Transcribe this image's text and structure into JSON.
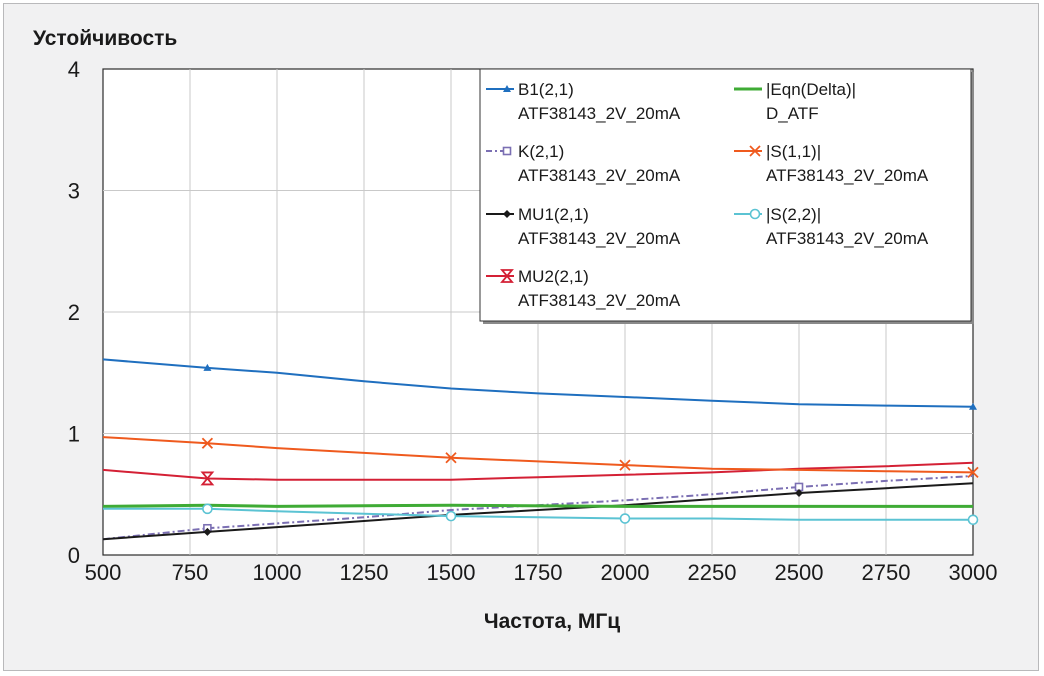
{
  "chart_data": {
    "type": "line",
    "title": "Устойчивость",
    "xlabel": "Частота, МГц",
    "ylabel": "",
    "xlim": [
      500,
      3000
    ],
    "ylim": [
      0,
      4
    ],
    "xticks": [
      "500",
      "750",
      "1000",
      "1250",
      "1500",
      "1750",
      "2000",
      "2250",
      "2500",
      "2750",
      "3000"
    ],
    "yticks": [
      "0",
      "1",
      "2",
      "3",
      "4"
    ],
    "grid": true,
    "legend_position": "top-right",
    "series": [
      {
        "name": "B1(2,1)",
        "subname": "ATF38143_2V_20mA",
        "color": "#1f6fbf",
        "marker": "triangle",
        "dash": false,
        "x": [
          500,
          800,
          1000,
          1250,
          1500,
          1750,
          2000,
          2250,
          2500,
          2750,
          3000
        ],
        "y": [
          1.61,
          1.54,
          1.5,
          1.43,
          1.37,
          1.33,
          1.3,
          1.27,
          1.24,
          1.23,
          1.22
        ],
        "markers_x": [
          800,
          3000
        ]
      },
      {
        "name": "K(2,1)",
        "subname": "ATF38143_2V_20mA",
        "color": "#7b6fb3",
        "marker": "square",
        "dash": true,
        "x": [
          500,
          800,
          1000,
          1250,
          1500,
          1750,
          2000,
          2250,
          2500,
          2750,
          3000
        ],
        "y": [
          0.13,
          0.22,
          0.26,
          0.31,
          0.37,
          0.41,
          0.45,
          0.5,
          0.56,
          0.61,
          0.65
        ],
        "markers_x": [
          800,
          2500
        ]
      },
      {
        "name": "MU1(2,1)",
        "subname": "ATF38143_2V_20mA",
        "color": "#1a1a1a",
        "marker": "diamond",
        "dash": false,
        "x": [
          500,
          800,
          1000,
          1250,
          1500,
          1750,
          2000,
          2250,
          2500,
          2750,
          3000
        ],
        "y": [
          0.13,
          0.19,
          0.23,
          0.28,
          0.33,
          0.37,
          0.41,
          0.46,
          0.51,
          0.55,
          0.59
        ],
        "markers_x": [
          800,
          2500
        ]
      },
      {
        "name": "MU2(2,1)",
        "subname": "ATF38143_2V_20mA",
        "color": "#d42035",
        "marker": "hourglass",
        "dash": false,
        "x": [
          500,
          800,
          1000,
          1250,
          1500,
          1750,
          2000,
          2250,
          2500,
          2750,
          3000
        ],
        "y": [
          0.7,
          0.63,
          0.62,
          0.62,
          0.62,
          0.64,
          0.66,
          0.68,
          0.71,
          0.73,
          0.76
        ],
        "markers_x": [
          800
        ]
      },
      {
        "name": "|Eqn(Delta)|",
        "subname": "D_ATF",
        "color": "#3fab35",
        "marker": "none",
        "dash": false,
        "x": [
          500,
          800,
          1000,
          1500,
          2000,
          2500,
          3000
        ],
        "y": [
          0.4,
          0.41,
          0.4,
          0.41,
          0.4,
          0.4,
          0.4
        ],
        "markers_x": []
      },
      {
        "name": "|S(1,1)|",
        "subname": "ATF38143_2V_20mA",
        "color": "#ef5a1e",
        "marker": "x",
        "dash": false,
        "x": [
          500,
          800,
          1000,
          1250,
          1500,
          1750,
          2000,
          2250,
          2500,
          2750,
          3000
        ],
        "y": [
          0.97,
          0.92,
          0.88,
          0.84,
          0.8,
          0.77,
          0.74,
          0.71,
          0.7,
          0.69,
          0.68
        ],
        "markers_x": [
          800,
          1500,
          2000,
          3000
        ]
      },
      {
        "name": "|S(2,2)|",
        "subname": "ATF38143_2V_20mA",
        "color": "#5bc3d3",
        "marker": "circle",
        "dash": false,
        "x": [
          500,
          800,
          1000,
          1250,
          1500,
          1750,
          2000,
          2250,
          2500,
          2750,
          3000
        ],
        "y": [
          0.38,
          0.38,
          0.36,
          0.34,
          0.32,
          0.31,
          0.3,
          0.3,
          0.29,
          0.29,
          0.29
        ],
        "markers_x": [
          800,
          1500,
          2000,
          3000
        ]
      }
    ]
  }
}
